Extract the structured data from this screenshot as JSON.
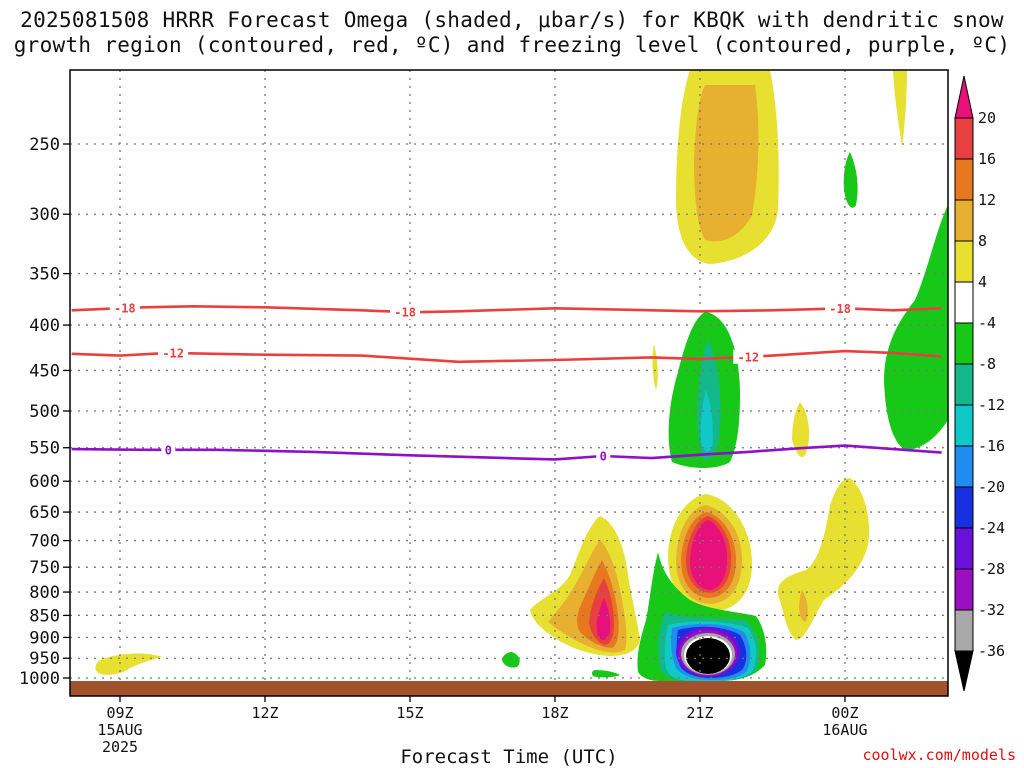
{
  "title_line1": "2025081508 HRRR Forecast Omega (shaded, μbar/s) for KBQK with dendritic snow",
  "title_line2": "growth region (contoured, red, ºC) and freezing level (contoured, purple, ºC)",
  "xlabel": "Forecast Time (UTC)",
  "credit": "coolwx.com/models",
  "chart_data": {
    "type": "heatmap",
    "title": "2025081508 HRRR Forecast Omega (shaded, μbar/s) for KBQK with dendritic snow growth region (contoured, red, ºC) and freezing level (contoured, purple, ºC)",
    "xlabel": "Forecast Time (UTC)",
    "ylabel": "",
    "y_scale": "log-pressure",
    "yticks": [
      250,
      300,
      350,
      400,
      450,
      500,
      550,
      600,
      650,
      700,
      750,
      800,
      850,
      900,
      950,
      1000
    ],
    "xticks": [
      {
        "label": "09Z",
        "sub1": "15AUG",
        "sub2": "2025",
        "hour": 9
      },
      {
        "label": "12Z",
        "sub1": "",
        "sub2": "",
        "hour": 12
      },
      {
        "label": "15Z",
        "sub1": "",
        "sub2": "",
        "hour": 15
      },
      {
        "label": "18Z",
        "sub1": "",
        "sub2": "",
        "hour": 18
      },
      {
        "label": "21Z",
        "sub1": "",
        "sub2": "",
        "hour": 21
      },
      {
        "label": "00Z",
        "sub1": "16AUG",
        "sub2": "",
        "hour": 24
      }
    ],
    "colorbar": {
      "levels": [
        "-36",
        "-32",
        "-28",
        "-24",
        "-20",
        "-16",
        "-12",
        "-8",
        "-4",
        "4",
        "8",
        "12",
        "16",
        "20"
      ],
      "colors": [
        "#000000",
        "#a8a8a8",
        "#9a10c0",
        "#6a10d8",
        "#1830e0",
        "#1e8cf0",
        "#10c8c8",
        "#12b88a",
        "#18c818",
        "#ffffff",
        "#e8e030",
        "#e8b030",
        "#e87820",
        "#e84040",
        "#e8107a"
      ]
    },
    "contours": [
      {
        "name": "-18",
        "color": "#e84040",
        "label_hours": [
          9.1,
          14.9,
          23.9
        ],
        "points": [
          [
            8.0,
            385
          ],
          [
            9.5,
            382
          ],
          [
            10.5,
            381
          ],
          [
            12,
            382
          ],
          [
            14,
            385
          ],
          [
            15,
            387
          ],
          [
            16,
            386
          ],
          [
            18,
            383
          ],
          [
            20,
            385
          ],
          [
            21,
            386
          ],
          [
            22.5,
            385
          ],
          [
            24,
            383
          ],
          [
            25,
            385
          ],
          [
            26,
            383
          ]
        ]
      },
      {
        "name": "-12",
        "color": "#e84040",
        "label_hours": [
          10.1,
          22.0
        ],
        "points": [
          [
            8.0,
            431
          ],
          [
            9,
            433
          ],
          [
            10,
            430
          ],
          [
            12,
            432
          ],
          [
            14,
            433
          ],
          [
            16,
            440
          ],
          [
            18,
            438
          ],
          [
            20,
            435
          ],
          [
            21,
            437
          ],
          [
            22.5,
            433
          ],
          [
            24,
            428
          ],
          [
            25,
            430
          ],
          [
            26,
            434
          ]
        ]
      },
      {
        "name": "0",
        "color": "#8e10c8",
        "label_hours": [
          10.0,
          19.0
        ],
        "points": [
          [
            8.0,
            552
          ],
          [
            9.5,
            553
          ],
          [
            11,
            553
          ],
          [
            13,
            556
          ],
          [
            15,
            561
          ],
          [
            17,
            565
          ],
          [
            18,
            567
          ],
          [
            19,
            562
          ],
          [
            20,
            565
          ],
          [
            21,
            560
          ],
          [
            22,
            556
          ],
          [
            23,
            551
          ],
          [
            24,
            547
          ],
          [
            25,
            552
          ],
          [
            26,
            557
          ]
        ]
      }
    ]
  }
}
